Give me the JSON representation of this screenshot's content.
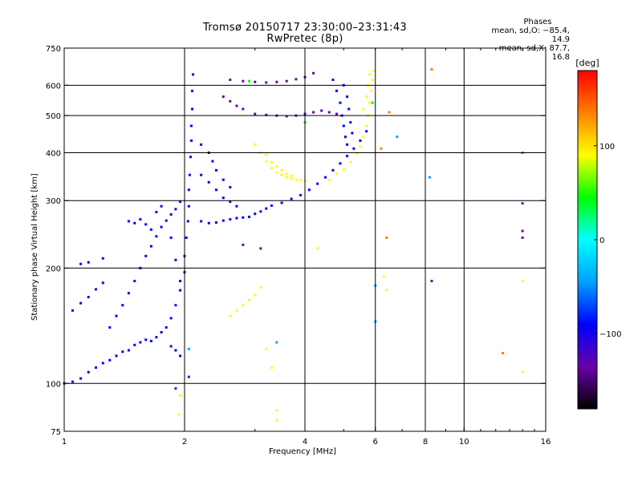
{
  "title_line1": "Tromsø 20150717 23:30:00–23:31:43",
  "title_line2": "RwPretec (8p)",
  "phases": {
    "title": "Phases",
    "line1": "mean, sd,O: −85.4, 14.9",
    "line2": "mean, sd,X:  87.7, 16.8"
  },
  "chart_data": {
    "type": "scatter",
    "xlabel": "Frequency [MHz]",
    "ylabel": "Stationary phase Virtual Height [km]",
    "x_scale": "log",
    "y_scale": "log",
    "xlim": [
      1,
      16
    ],
    "ylim": [
      75,
      750
    ],
    "x_ticks": [
      {
        "value": 1,
        "label": "1"
      },
      {
        "value": 2,
        "label": "2"
      },
      {
        "value": 4,
        "label": "4"
      },
      {
        "value": 6,
        "label": "6"
      },
      {
        "value": 8,
        "label": "8"
      },
      {
        "value": 10,
        "label": "10"
      },
      {
        "value": 16,
        "label": "16"
      }
    ],
    "x_gridlines": [
      2,
      4,
      6,
      8,
      10
    ],
    "y_ticks": [
      {
        "value": 75,
        "label": "75"
      },
      {
        "value": 100,
        "label": "100"
      },
      {
        "value": 200,
        "label": "200"
      },
      {
        "value": 300,
        "label": "300"
      },
      {
        "value": 400,
        "label": "400"
      },
      {
        "value": 500,
        "label": "500"
      },
      {
        "value": 600,
        "label": "600"
      },
      {
        "value": 750,
        "label": "750"
      }
    ],
    "y_gridlines": [
      100,
      200,
      300,
      400,
      500,
      600
    ],
    "grid": true,
    "colorbar": {
      "label": "[deg]",
      "range": [
        -180,
        180
      ],
      "ticks": [
        {
          "value": 100,
          "label": "100"
        },
        {
          "value": 0,
          "label": "0"
        },
        {
          "value": -100,
          "label": "−100"
        }
      ],
      "colors": [
        "#000000",
        "#6a00a8",
        "#0000ff",
        "#00a0ff",
        "#00ffff",
        "#00ff00",
        "#ffff00",
        "#ff8000",
        "#ff0000"
      ]
    },
    "series": [
      {
        "phase": -95,
        "points": [
          [
            1.0,
            100
          ],
          [
            1.05,
            101
          ],
          [
            1.1,
            103
          ],
          [
            1.15,
            107
          ],
          [
            1.2,
            110
          ],
          [
            1.25,
            113
          ],
          [
            1.3,
            115
          ],
          [
            1.35,
            118
          ],
          [
            1.4,
            121
          ],
          [
            1.45,
            122
          ],
          [
            1.5,
            126
          ],
          [
            1.55,
            128
          ],
          [
            1.6,
            130
          ],
          [
            1.65,
            129
          ],
          [
            1.7,
            132
          ],
          [
            1.75,
            136
          ],
          [
            1.8,
            140
          ],
          [
            1.85,
            148
          ],
          [
            1.9,
            160
          ],
          [
            1.95,
            175
          ],
          [
            2.0,
            195
          ],
          [
            2.0,
            215
          ],
          [
            2.02,
            240
          ],
          [
            2.04,
            265
          ],
          [
            2.05,
            290
          ],
          [
            2.05,
            320
          ],
          [
            2.06,
            350
          ],
          [
            2.07,
            390
          ],
          [
            2.08,
            430
          ],
          [
            2.08,
            470
          ],
          [
            2.09,
            520
          ],
          [
            2.09,
            580
          ],
          [
            2.1,
            640
          ]
        ]
      },
      {
        "phase": -100,
        "points": [
          [
            1.05,
            155
          ],
          [
            1.1,
            162
          ],
          [
            1.15,
            168
          ],
          [
            1.2,
            176
          ],
          [
            1.25,
            183
          ],
          [
            1.1,
            205
          ],
          [
            1.15,
            207
          ],
          [
            1.25,
            212
          ],
          [
            1.3,
            140
          ],
          [
            1.35,
            150
          ],
          [
            1.4,
            160
          ],
          [
            1.45,
            172
          ],
          [
            1.5,
            185
          ],
          [
            1.55,
            200
          ],
          [
            1.6,
            215
          ],
          [
            1.65,
            228
          ],
          [
            1.7,
            242
          ],
          [
            1.75,
            256
          ],
          [
            1.8,
            266
          ],
          [
            1.85,
            276
          ],
          [
            1.9,
            285
          ],
          [
            1.95,
            298
          ],
          [
            1.45,
            265
          ],
          [
            1.5,
            262
          ],
          [
            1.55,
            268
          ],
          [
            1.6,
            260
          ],
          [
            1.65,
            252
          ],
          [
            1.7,
            280
          ],
          [
            1.75,
            290
          ],
          [
            1.85,
            240
          ],
          [
            1.9,
            210
          ],
          [
            1.95,
            185
          ],
          [
            1.85,
            125
          ],
          [
            1.9,
            122
          ],
          [
            1.95,
            118
          ]
        ]
      },
      {
        "phase": -110,
        "points": [
          [
            2.2,
            265
          ],
          [
            2.3,
            262
          ],
          [
            2.4,
            263
          ],
          [
            2.5,
            266
          ],
          [
            2.6,
            268
          ],
          [
            2.7,
            270
          ],
          [
            2.8,
            271
          ],
          [
            2.9,
            272
          ],
          [
            3.0,
            277
          ],
          [
            3.1,
            281
          ],
          [
            3.2,
            286
          ],
          [
            3.3,
            291
          ],
          [
            3.5,
            296
          ],
          [
            3.7,
            303
          ],
          [
            3.9,
            310
          ],
          [
            4.1,
            320
          ],
          [
            4.3,
            332
          ],
          [
            4.5,
            345
          ],
          [
            4.7,
            360
          ],
          [
            4.9,
            375
          ],
          [
            5.1,
            392
          ],
          [
            5.3,
            410
          ],
          [
            5.5,
            430
          ],
          [
            5.7,
            455
          ]
        ]
      },
      {
        "phase": -105,
        "points": [
          [
            2.2,
            350
          ],
          [
            2.3,
            335
          ],
          [
            2.4,
            320
          ],
          [
            2.5,
            305
          ],
          [
            2.6,
            298
          ],
          [
            2.7,
            290
          ],
          [
            2.2,
            420
          ],
          [
            2.3,
            400
          ],
          [
            2.35,
            380
          ],
          [
            2.4,
            360
          ],
          [
            2.5,
            340
          ],
          [
            2.6,
            325
          ]
        ]
      },
      {
        "phase": -115,
        "points": [
          [
            2.6,
            620
          ],
          [
            2.8,
            615
          ],
          [
            3.0,
            612
          ],
          [
            3.2,
            610
          ],
          [
            3.4,
            612
          ],
          [
            3.6,
            615
          ],
          [
            3.8,
            622
          ],
          [
            4.0,
            630
          ],
          [
            4.2,
            645
          ],
          [
            2.5,
            560
          ],
          [
            2.6,
            545
          ],
          [
            2.7,
            530
          ],
          [
            2.8,
            520
          ],
          [
            3.0,
            505
          ],
          [
            3.2,
            502
          ],
          [
            3.4,
            500
          ],
          [
            3.6,
            498
          ],
          [
            3.8,
            500
          ],
          [
            4.0,
            505
          ],
          [
            4.2,
            510
          ],
          [
            4.4,
            515
          ],
          [
            4.6,
            510
          ],
          [
            4.8,
            505
          ]
        ]
      },
      {
        "phase": -100,
        "points": [
          [
            4.7,
            620
          ],
          [
            4.8,
            580
          ],
          [
            4.9,
            540
          ],
          [
            4.95,
            500
          ],
          [
            5.0,
            470
          ],
          [
            5.05,
            440
          ],
          [
            5.1,
            420
          ],
          [
            5.0,
            600
          ],
          [
            5.1,
            560
          ],
          [
            5.15,
            520
          ],
          [
            5.2,
            480
          ],
          [
            5.25,
            450
          ]
        ]
      },
      {
        "phase": 95,
        "points": [
          [
            3.0,
            420
          ],
          [
            3.1,
            400
          ],
          [
            3.2,
            380
          ],
          [
            3.3,
            365
          ],
          [
            3.4,
            355
          ],
          [
            3.5,
            350
          ],
          [
            3.6,
            345
          ],
          [
            3.7,
            342
          ],
          [
            3.8,
            340
          ],
          [
            3.9,
            340
          ],
          [
            4.0,
            338
          ],
          [
            3.2,
            395
          ],
          [
            3.3,
            378
          ],
          [
            3.4,
            368
          ],
          [
            3.5,
            360
          ],
          [
            3.6,
            352
          ],
          [
            3.7,
            348
          ],
          [
            4.6,
            340
          ],
          [
            4.8,
            352
          ],
          [
            5.0,
            362
          ],
          [
            5.2,
            378
          ],
          [
            5.4,
            398
          ],
          [
            5.5,
            415
          ],
          [
            5.6,
            440
          ],
          [
            5.7,
            470
          ],
          [
            5.75,
            500
          ],
          [
            5.8,
            540
          ],
          [
            5.85,
            580
          ],
          [
            5.9,
            620
          ],
          [
            5.95,
            655
          ],
          [
            5.6,
            520
          ],
          [
            5.7,
            560
          ],
          [
            5.75,
            600
          ],
          [
            5.8,
            640
          ],
          [
            2.6,
            150
          ],
          [
            2.7,
            155
          ],
          [
            2.8,
            160
          ],
          [
            2.9,
            165
          ],
          [
            3.0,
            170
          ],
          [
            3.1,
            178
          ]
        ]
      },
      {
        "phase": 150,
        "points": [
          [
            6.5,
            510
          ],
          [
            8.3,
            660
          ],
          [
            6.4,
            240
          ],
          [
            12.5,
            120
          ],
          [
            6.2,
            410
          ]
        ]
      },
      {
        "phase": 40,
        "points": [
          [
            2.9,
            615
          ],
          [
            4.0,
            480
          ],
          [
            5.9,
            540
          ]
        ]
      },
      {
        "phase": 110,
        "points": [
          [
            3.4,
            85
          ],
          [
            3.4,
            80
          ],
          [
            1.93,
            83
          ],
          [
            1.95,
            93
          ],
          [
            6.3,
            190
          ],
          [
            6.4,
            175
          ],
          [
            14.0,
            185
          ],
          [
            14.0,
            107
          ],
          [
            4.3,
            225
          ],
          [
            3.3,
            110
          ],
          [
            3.2,
            123
          ]
        ]
      },
      {
        "phase": -30,
        "points": [
          [
            3.4,
            128
          ],
          [
            2.05,
            123
          ],
          [
            6.0,
            145
          ],
          [
            6.0,
            180
          ],
          [
            14.0,
            400
          ],
          [
            8.2,
            345
          ],
          [
            6.8,
            440
          ]
        ]
      },
      {
        "phase": -140,
        "points": [
          [
            1.9,
            97
          ],
          [
            2.05,
            104
          ],
          [
            8.3,
            185
          ],
          [
            14.0,
            295
          ],
          [
            14.0,
            250
          ],
          [
            14.0,
            240
          ],
          [
            2.8,
            230
          ],
          [
            3.1,
            225
          ]
        ]
      }
    ]
  }
}
